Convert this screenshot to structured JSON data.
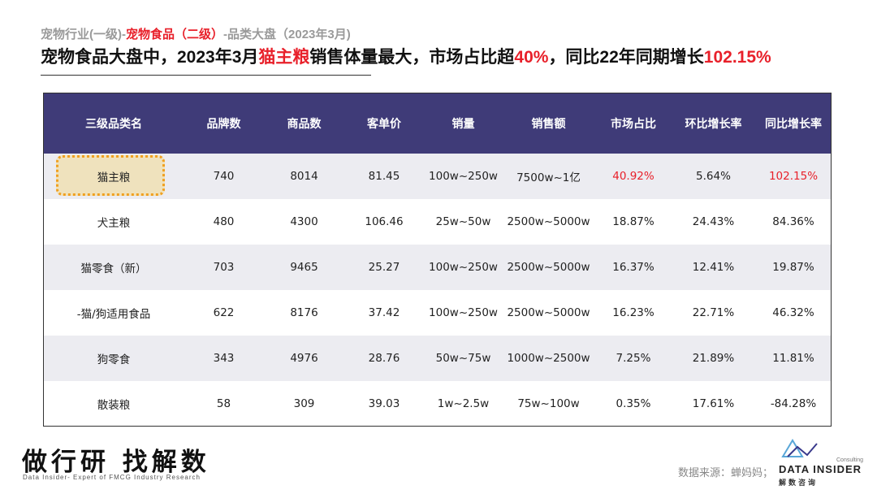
{
  "header": {
    "breadcrumb_part1": "宠物行业(一级)-",
    "breadcrumb_part2": "宠物食品（二级）",
    "breadcrumb_part3": "-品类大盘（2023年3月)",
    "headline_part1": "宠物食品大盘中，2023年3月",
    "headline_part2": "猫主粮",
    "headline_part3": "销售体量最大，市场占比超",
    "headline_part4": "40%",
    "headline_part5": "，同比22年同期增长",
    "headline_part6": "102.15%"
  },
  "table": {
    "headers": [
      "三级品类名",
      "品牌数",
      "商品数",
      "客单价",
      "销量",
      "销售额",
      "市场占比",
      "环比增长率",
      "同比增长率"
    ],
    "rows": [
      [
        "猫主粮",
        "740",
        "8014",
        "81.45",
        "100w~250w",
        "7500w~1亿",
        "40.92%",
        "5.64%",
        "102.15%"
      ],
      [
        "犬主粮",
        "480",
        "4300",
        "106.46",
        "25w~50w",
        "2500w~5000w",
        "18.87%",
        "24.43%",
        "84.36%"
      ],
      [
        "猫零食（新）",
        "703",
        "9465",
        "25.27",
        "100w~250w",
        "2500w~5000w",
        "16.37%",
        "12.41%",
        "19.87%"
      ],
      [
        "-猫/狗适用食品",
        "622",
        "8176",
        "37.42",
        "100w~250w",
        "2500w~5000w",
        "16.23%",
        "22.71%",
        "46.32%"
      ],
      [
        "狗零食",
        "343",
        "4976",
        "28.76",
        "50w~75w",
        "1000w~2500w",
        "7.25%",
        "21.89%",
        "11.81%"
      ],
      [
        "散装粮",
        "58",
        "309",
        "39.03",
        "1w~2.5w",
        "75w~100w",
        "0.35%",
        "17.61%",
        "-84.28%"
      ]
    ],
    "highlight_color": "#e8202a",
    "header_bg": "#3f3b78"
  },
  "footer": {
    "slogan": "做行研 找解数",
    "slogan_sub": "Data Insider- Expert of FMCG Industry Research",
    "source": "数据来源：蝉妈妈；",
    "logo_consulting": "Consulting",
    "logo_name": "DATA INSIDER",
    "logo_cn": "解数咨询"
  }
}
